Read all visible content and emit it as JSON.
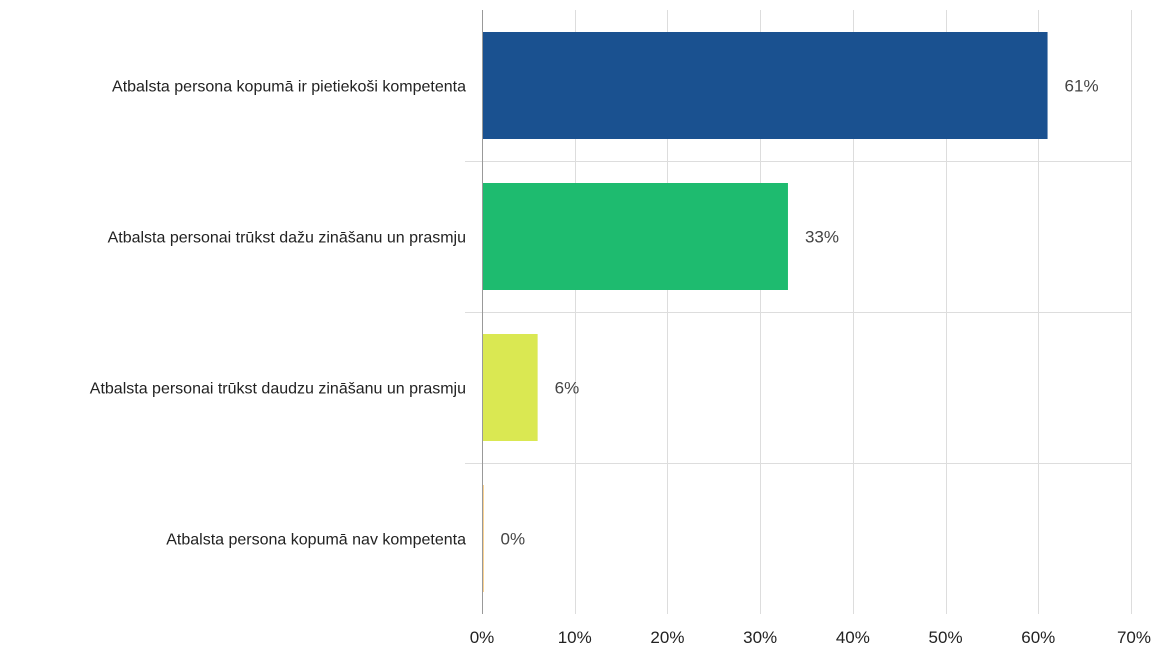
{
  "chart_data": {
    "type": "bar",
    "orientation": "horizontal",
    "categories": [
      "Atbalsta persona kopumā ir pietiekoši kompetenta",
      "Atbalsta personai trūkst dažu zināšanu un prasmju",
      "Atbalsta personai trūkst daudzu zināšanu un prasmju",
      "Atbalsta persona kopumā nav kompetenta"
    ],
    "values": [
      61,
      33,
      6,
      0
    ],
    "value_labels": [
      "61%",
      "33%",
      "6%",
      "0%"
    ],
    "colors": [
      "#1a5190",
      "#1ebb6f",
      "#dae852",
      "#f5a623"
    ],
    "xlim": [
      0,
      70
    ],
    "x_ticks": [
      0,
      10,
      20,
      30,
      40,
      50,
      60,
      70
    ],
    "x_tick_labels": [
      "0%",
      "10%",
      "20%",
      "30%",
      "40%",
      "50%",
      "60%",
      "70%"
    ],
    "title": "",
    "xlabel": "",
    "ylabel": "",
    "grid": true,
    "legend": "none"
  }
}
